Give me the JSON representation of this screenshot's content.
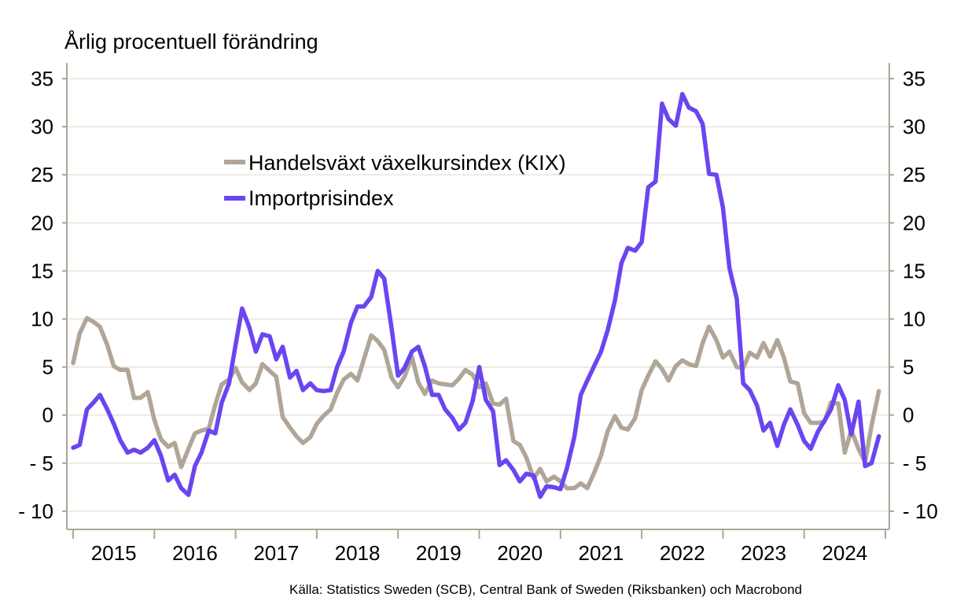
{
  "chart_data": {
    "type": "line",
    "ylabel": "Årlig procentuell förändring",
    "source": "Källa: Statistics Sweden (SCB), Central Bank of Sweden (Riksbanken)  och Macrobond",
    "ylim": [
      -10,
      35
    ],
    "yticks": [
      35,
      30,
      25,
      20,
      15,
      10,
      5,
      0,
      -5,
      -10
    ],
    "ytick_labels": [
      "35",
      "30",
      "25",
      "20",
      "15",
      "10",
      "5",
      "0",
      "- 5",
      "- 10"
    ],
    "xlim": [
      2015.0,
      2025.0
    ],
    "xtick_labels": [
      "2015",
      "2016",
      "2017",
      "2018",
      "2019",
      "2020",
      "2021",
      "2022",
      "2023",
      "2024"
    ],
    "grid": true,
    "legend_position": "upper-left-center",
    "colors": {
      "kix": "#b0a597",
      "import": "#6a45f0",
      "grid": "#e3ded6",
      "axis": "#b0a597"
    },
    "series": [
      {
        "name": "Handelsväxt växelkursindex (KIX)",
        "color": "#b0a597",
        "x": [
          2015.0,
          2015.08,
          2015.17,
          2015.25,
          2015.33,
          2015.42,
          2015.5,
          2015.58,
          2015.67,
          2015.75,
          2015.83,
          2015.92,
          2016.0,
          2016.08,
          2016.17,
          2016.25,
          2016.33,
          2016.42,
          2016.5,
          2016.58,
          2016.67,
          2016.75,
          2016.83,
          2016.92,
          2017.0,
          2017.08,
          2017.17,
          2017.25,
          2017.33,
          2017.42,
          2017.5,
          2017.58,
          2017.67,
          2017.75,
          2017.83,
          2017.92,
          2018.0,
          2018.08,
          2018.17,
          2018.25,
          2018.33,
          2018.42,
          2018.5,
          2018.58,
          2018.67,
          2018.75,
          2018.83,
          2018.92,
          2019.0,
          2019.08,
          2019.17,
          2019.25,
          2019.33,
          2019.42,
          2019.5,
          2019.58,
          2019.67,
          2019.75,
          2019.83,
          2019.92,
          2020.0,
          2020.08,
          2020.17,
          2020.25,
          2020.33,
          2020.42,
          2020.5,
          2020.58,
          2020.67,
          2020.75,
          2020.83,
          2020.92,
          2021.0,
          2021.08,
          2021.17,
          2021.25,
          2021.33,
          2021.42,
          2021.5,
          2021.58,
          2021.67,
          2021.75,
          2021.83,
          2021.92,
          2022.0,
          2022.08,
          2022.17,
          2022.25,
          2022.33,
          2022.42,
          2022.5,
          2022.58,
          2022.67,
          2022.75,
          2022.83,
          2022.92,
          2023.0,
          2023.08,
          2023.17,
          2023.25,
          2023.33,
          2023.42,
          2023.5,
          2023.58,
          2023.67,
          2023.75,
          2023.83,
          2023.92,
          2024.0,
          2024.08,
          2024.17,
          2024.25,
          2024.33,
          2024.42,
          2024.5,
          2024.58,
          2024.67,
          2024.75,
          2024.83,
          2024.92
        ],
        "values": [
          5.4,
          8.5,
          10.1,
          9.7,
          9.2,
          7.3,
          5.1,
          4.7,
          4.7,
          1.8,
          1.8,
          2.4,
          -0.5,
          -2.5,
          -3.3,
          -2.9,
          -5.4,
          -3.5,
          -1.9,
          -1.6,
          -1.4,
          1.1,
          3.2,
          3.7,
          4.9,
          3.4,
          2.6,
          3.3,
          5.3,
          4.6,
          4.0,
          -0.2,
          -1.3,
          -2.2,
          -2.9,
          -2.3,
          -0.9,
          -0.1,
          0.6,
          2.3,
          3.7,
          4.3,
          3.6,
          5.8,
          8.3,
          7.7,
          6.8,
          3.9,
          2.9,
          4.0,
          6.1,
          3.4,
          2.2,
          3.6,
          3.3,
          3.2,
          3.1,
          3.8,
          4.7,
          4.2,
          2.9,
          3.3,
          1.2,
          1.1,
          1.7,
          -2.7,
          -3.1,
          -4.4,
          -6.6,
          -5.6,
          -6.9,
          -6.4,
          -6.9,
          -7.6,
          -7.6,
          -7.1,
          -7.6,
          -5.9,
          -4.2,
          -1.7,
          -0.1,
          -1.3,
          -1.5,
          -0.3,
          2.6,
          4.1,
          5.6,
          4.8,
          3.6,
          5.1,
          5.7,
          5.3,
          5.1,
          7.5,
          9.2,
          7.8,
          6.0,
          6.6,
          5.0,
          4.9,
          6.5,
          6.0,
          7.5,
          6.1,
          7.8,
          6.0,
          3.5,
          3.3,
          0.2,
          -0.8,
          -0.8,
          -0.7,
          1.3,
          1.2,
          -3.9,
          -1.6,
          -3.5,
          -4.9,
          -1.1,
          2.5
        ]
      },
      {
        "name": "Importprisindex",
        "color": "#6a45f0",
        "x": [
          2015.0,
          2015.08,
          2015.17,
          2015.25,
          2015.33,
          2015.42,
          2015.5,
          2015.58,
          2015.67,
          2015.75,
          2015.83,
          2015.92,
          2016.0,
          2016.08,
          2016.17,
          2016.25,
          2016.33,
          2016.42,
          2016.5,
          2016.58,
          2016.67,
          2016.75,
          2016.83,
          2016.92,
          2017.0,
          2017.08,
          2017.17,
          2017.25,
          2017.33,
          2017.42,
          2017.5,
          2017.58,
          2017.67,
          2017.75,
          2017.83,
          2017.92,
          2018.0,
          2018.08,
          2018.17,
          2018.25,
          2018.33,
          2018.42,
          2018.5,
          2018.58,
          2018.67,
          2018.75,
          2018.83,
          2018.92,
          2019.0,
          2019.08,
          2019.17,
          2019.25,
          2019.33,
          2019.42,
          2019.5,
          2019.58,
          2019.67,
          2019.75,
          2019.83,
          2019.92,
          2020.0,
          2020.08,
          2020.17,
          2020.25,
          2020.33,
          2020.42,
          2020.5,
          2020.58,
          2020.67,
          2020.75,
          2020.83,
          2020.92,
          2021.0,
          2021.08,
          2021.17,
          2021.25,
          2021.33,
          2021.42,
          2021.5,
          2021.58,
          2021.67,
          2021.75,
          2021.83,
          2021.92,
          2022.0,
          2022.08,
          2022.17,
          2022.25,
          2022.33,
          2022.42,
          2022.5,
          2022.58,
          2022.67,
          2022.75,
          2022.83,
          2022.92,
          2023.0,
          2023.08,
          2023.17,
          2023.25,
          2023.33,
          2023.42,
          2023.5,
          2023.58,
          2023.67,
          2023.75,
          2023.83,
          2023.92,
          2024.0,
          2024.08,
          2024.17,
          2024.25,
          2024.33,
          2024.42,
          2024.5,
          2024.58,
          2024.67,
          2024.75,
          2024.83,
          2024.92
        ],
        "values": [
          -3.4,
          -3.1,
          0.6,
          1.3,
          2.1,
          0.6,
          -0.9,
          -2.6,
          -3.9,
          -3.6,
          -3.9,
          -3.4,
          -2.6,
          -4.2,
          -6.8,
          -6.2,
          -7.6,
          -8.3,
          -5.3,
          -3.9,
          -1.6,
          -1.9,
          1.3,
          3.3,
          7.3,
          11.1,
          9.1,
          6.6,
          8.4,
          8.2,
          5.8,
          7.1,
          3.9,
          4.6,
          2.6,
          3.3,
          2.6,
          2.5,
          2.6,
          5.0,
          6.6,
          9.6,
          11.3,
          11.3,
          12.3,
          15.0,
          14.2,
          9.1,
          4.1,
          4.9,
          6.6,
          7.1,
          5.1,
          2.1,
          2.1,
          0.6,
          -0.3,
          -1.5,
          -0.8,
          1.5,
          5.0,
          1.6,
          0.4,
          -5.2,
          -4.7,
          -5.7,
          -6.9,
          -6.1,
          -6.3,
          -8.5,
          -7.4,
          -7.5,
          -7.7,
          -5.5,
          -2.3,
          2.1,
          3.6,
          5.2,
          6.6,
          8.8,
          11.9,
          15.8,
          17.4,
          17.1,
          18.0,
          23.7,
          24.3,
          32.4,
          30.8,
          30.1,
          33.4,
          32.0,
          31.6,
          30.3,
          25.1,
          25.0,
          21.6,
          15.3,
          12.1,
          3.3,
          2.6,
          1.0,
          -1.6,
          -0.8,
          -3.2,
          -1.0,
          0.6,
          -1.0,
          -2.7,
          -3.5,
          -1.7,
          -0.6,
          0.6,
          3.1,
          1.6,
          -2.0,
          1.4,
          -5.3,
          -5.0,
          -2.2
        ]
      }
    ]
  }
}
